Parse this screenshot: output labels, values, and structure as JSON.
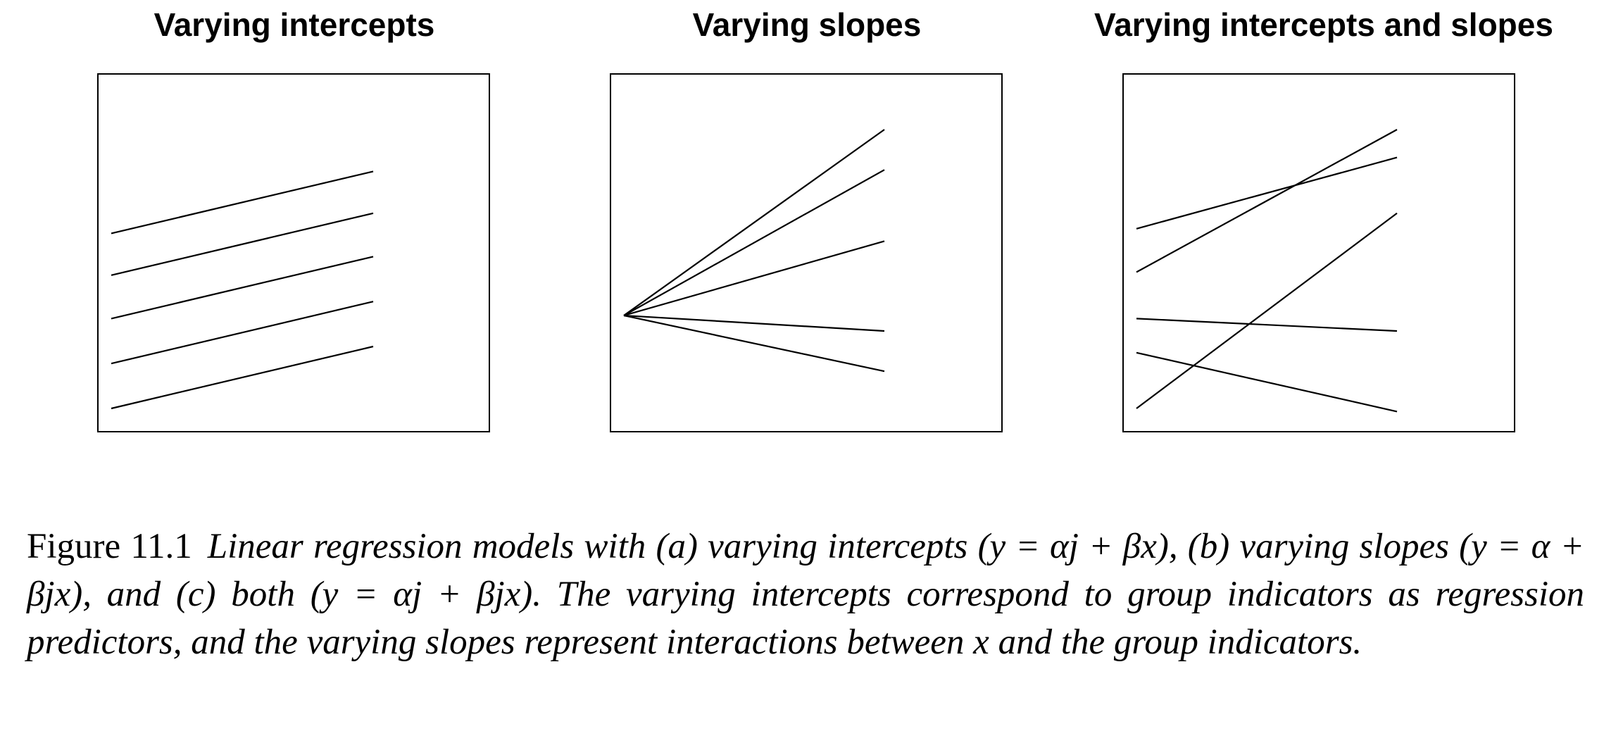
{
  "panels": [
    {
      "title": "Varying intercepts",
      "lines": [
        [
          [
            0.0,
            0.0
          ],
          [
            1.0,
            0.2
          ]
        ],
        [
          [
            0.0,
            0.145
          ],
          [
            1.0,
            0.345
          ]
        ],
        [
          [
            0.0,
            0.29
          ],
          [
            1.0,
            0.49
          ]
        ],
        [
          [
            0.0,
            0.43
          ],
          [
            1.0,
            0.63
          ]
        ],
        [
          [
            0.0,
            0.565
          ],
          [
            1.0,
            0.765
          ]
        ]
      ]
    },
    {
      "title": "Varying slopes",
      "lines": [
        [
          [
            0.0,
            0.3
          ],
          [
            1.0,
            0.9
          ]
        ],
        [
          [
            0.0,
            0.3
          ],
          [
            1.0,
            0.77
          ]
        ],
        [
          [
            0.0,
            0.3
          ],
          [
            1.0,
            0.54
          ]
        ],
        [
          [
            0.0,
            0.3
          ],
          [
            1.0,
            0.25
          ]
        ],
        [
          [
            0.0,
            0.3
          ],
          [
            1.0,
            0.12
          ]
        ]
      ]
    },
    {
      "title": "Varying intercepts and slopes",
      "lines": [
        [
          [
            0.0,
            0.58
          ],
          [
            1.0,
            0.81
          ]
        ],
        [
          [
            0.0,
            0.44
          ],
          [
            1.0,
            0.9
          ]
        ],
        [
          [
            0.0,
            0.0
          ],
          [
            1.0,
            0.63
          ]
        ],
        [
          [
            0.0,
            0.29
          ],
          [
            1.0,
            0.25
          ]
        ],
        [
          [
            0.0,
            0.18
          ],
          [
            1.0,
            -0.01
          ]
        ]
      ]
    }
  ],
  "caption": {
    "label": "Figure 11.1",
    "text": "Linear regression models with (a) varying intercepts (y = αj + βx), (b) varying slopes (y = α + βjx), and (c) both (y = αj + βjx). The varying intercepts correspond to group indicators as regression predictors, and the varying slopes represent interactions between x and the group indicators."
  }
}
